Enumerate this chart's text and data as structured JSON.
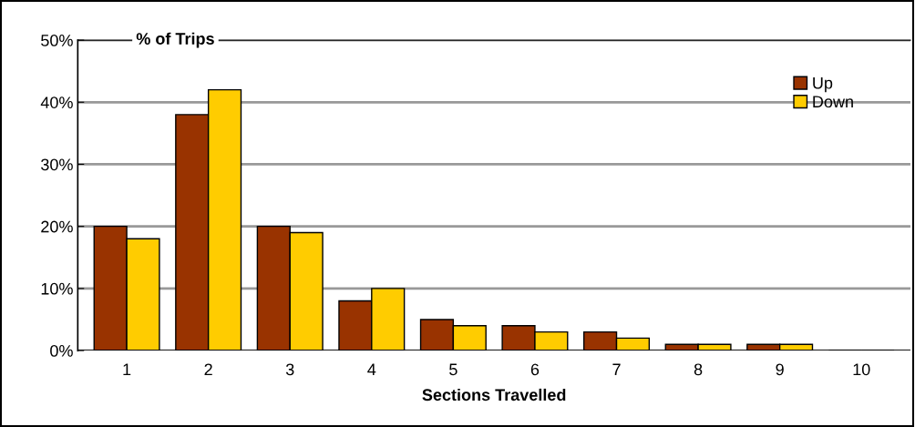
{
  "chart_data": {
    "type": "bar",
    "title": "% of Trips",
    "xlabel": "Sections Travelled",
    "categories": [
      "1",
      "2",
      "3",
      "4",
      "5",
      "6",
      "7",
      "8",
      "9",
      "10"
    ],
    "series": [
      {
        "name": "Up",
        "color": "#993300",
        "values": [
          20,
          38,
          20,
          8,
          5,
          4,
          3,
          1,
          1,
          0
        ]
      },
      {
        "name": "Down",
        "color": "#ffcc00",
        "values": [
          18,
          42,
          19,
          10,
          4,
          3,
          2,
          1,
          1,
          0
        ]
      }
    ],
    "ylim": [
      0,
      50
    ],
    "yticks": [
      {
        "value": 0,
        "label": "0%"
      },
      {
        "value": 10,
        "label": "10%"
      },
      {
        "value": 20,
        "label": "20%"
      },
      {
        "value": 30,
        "label": "30%"
      },
      {
        "value": 40,
        "label": "40%"
      },
      {
        "value": 50,
        "label": "50%"
      }
    ],
    "grid": "y",
    "legend": "top right"
  }
}
